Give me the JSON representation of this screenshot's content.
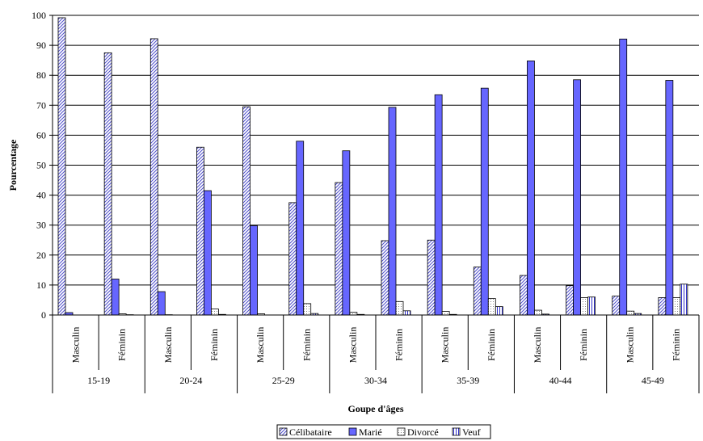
{
  "chart_data": {
    "type": "bar",
    "title": "",
    "xlabel": "Goupe d'âges",
    "ylabel": "Pourcentage",
    "ylim": [
      0,
      100
    ],
    "yticks": [
      0,
      10,
      20,
      30,
      40,
      50,
      60,
      70,
      80,
      90,
      100
    ],
    "grid": true,
    "legend_position": "bottom",
    "age_groups": [
      "15-19",
      "20-24",
      "25-29",
      "30-34",
      "35-39",
      "40-44",
      "45-49"
    ],
    "sexes": [
      "Masculin",
      "Féminin"
    ],
    "categories": [
      "15-19 Masculin",
      "15-19 Féminin",
      "20-24 Masculin",
      "20-24 Féminin",
      "25-29 Masculin",
      "25-29 Féminin",
      "30-34 Masculin",
      "30-34 Féminin",
      "35-39 Masculin",
      "35-39 Féminin",
      "40-44 Masculin",
      "40-44 Féminin",
      "45-49 Masculin",
      "45-49 Féminin"
    ],
    "series": [
      {
        "name": "Célibataire",
        "color": "#9999ff",
        "pattern": "diagonal",
        "values": [
          99.2,
          87.5,
          92.2,
          56.0,
          69.5,
          37.5,
          44.2,
          24.8,
          25.0,
          16.0,
          13.2,
          9.8,
          6.3,
          5.8
        ]
      },
      {
        "name": "Marié",
        "color": "#6666ff",
        "pattern": "solid",
        "values": [
          0.8,
          12.0,
          7.8,
          41.5,
          29.8,
          58.0,
          54.8,
          69.3,
          73.5,
          75.7,
          84.8,
          78.5,
          92.1,
          78.3
        ]
      },
      {
        "name": "Divorcé",
        "color": "#ffffff",
        "pattern": "dots",
        "values": [
          0.0,
          0.4,
          0.1,
          2.0,
          0.4,
          3.8,
          0.9,
          4.5,
          1.2,
          5.5,
          1.6,
          5.8,
          1.3,
          5.8
        ]
      },
      {
        "name": "Veuf",
        "color": "#9999ff",
        "pattern": "vertical",
        "values": [
          0.0,
          0.1,
          0.0,
          0.2,
          0.0,
          0.5,
          0.2,
          1.4,
          0.2,
          2.8,
          0.3,
          6.0,
          0.5,
          10.3
        ]
      }
    ]
  }
}
